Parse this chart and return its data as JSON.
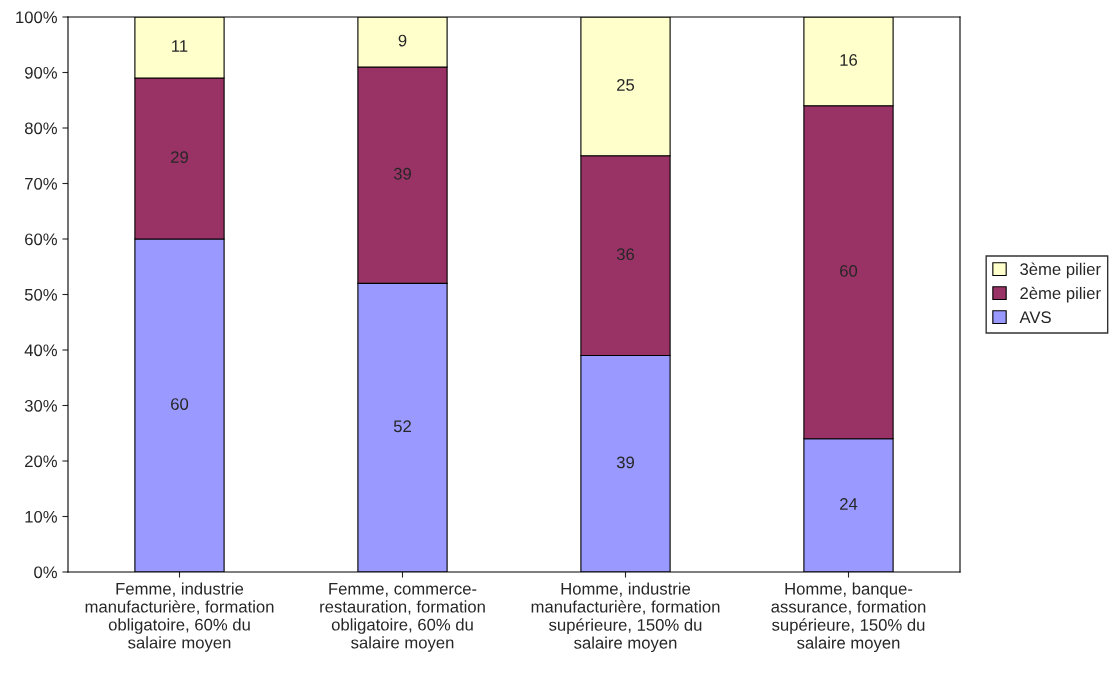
{
  "chart_data": {
    "type": "bar",
    "stacked": true,
    "categories": [
      "Femme, industrie\nmanufacturière, formation\nobligatoire, 60% du\nsalaire moyen",
      "Femme, commerce-\nrestauration, formation\nobligatoire, 60% du\nsalaire moyen",
      "Homme, industrie\nmanufacturière, formation\nsupérieure, 150% du\nsalaire moyen",
      "Homme, banque-\nassurance, formation\nsupérieure, 150% du\nsalaire moyen"
    ],
    "series": [
      {
        "name": "AVS",
        "color": "#9999ff",
        "values": [
          60,
          52,
          39,
          24
        ]
      },
      {
        "name": "2ème pilier",
        "color": "#993366",
        "values": [
          29,
          39,
          36,
          60
        ]
      },
      {
        "name": "3ème pilier",
        "color": "#ffffcc",
        "values": [
          11,
          9,
          25,
          16
        ]
      }
    ],
    "ylim": [
      0,
      100
    ],
    "yticks": [
      {
        "value": 0,
        "label": "0%"
      },
      {
        "value": 10,
        "label": "10%"
      },
      {
        "value": 20,
        "label": "20%"
      },
      {
        "value": 30,
        "label": "30%"
      },
      {
        "value": 40,
        "label": "40%"
      },
      {
        "value": 50,
        "label": "50%"
      },
      {
        "value": 60,
        "label": "60%"
      },
      {
        "value": 70,
        "label": "70%"
      },
      {
        "value": 80,
        "label": "80%"
      },
      {
        "value": 90,
        "label": "90%"
      },
      {
        "value": 100,
        "label": "100%"
      }
    ],
    "data_labels": true,
    "legend": "right",
    "grid": false
  }
}
